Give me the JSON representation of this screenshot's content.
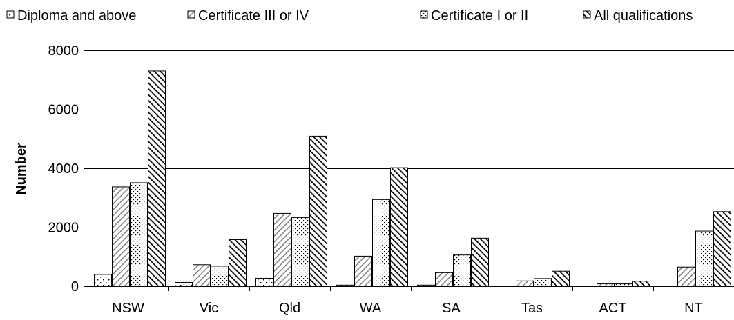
{
  "chart_data": {
    "type": "bar",
    "title": "",
    "xlabel": "",
    "ylabel": "Number",
    "ylim": [
      0,
      8000
    ],
    "yticks": [
      0,
      2000,
      4000,
      6000,
      8000
    ],
    "grid": true,
    "legend_position": "top",
    "categories": [
      "NSW",
      "Vic",
      "Qld",
      "WA",
      "SA",
      "Tas",
      "ACT",
      "NT"
    ],
    "series": [
      {
        "name": "Diploma and above",
        "pattern": "dots-sparse",
        "values": [
          400,
          130,
          270,
          40,
          40,
          0,
          0,
          0
        ]
      },
      {
        "name": "Certificate III or IV",
        "pattern": "diagonal-light",
        "values": [
          3370,
          730,
          2470,
          1020,
          460,
          180,
          80,
          650
        ]
      },
      {
        "name": "Certificate I or II",
        "pattern": "dots-dense",
        "values": [
          3510,
          680,
          2330,
          2940,
          1060,
          260,
          80,
          1870
        ]
      },
      {
        "name": "All qualifications",
        "pattern": "diagonal-dark",
        "values": [
          7300,
          1580,
          5090,
          4020,
          1630,
          510,
          170,
          2530
        ]
      }
    ]
  }
}
